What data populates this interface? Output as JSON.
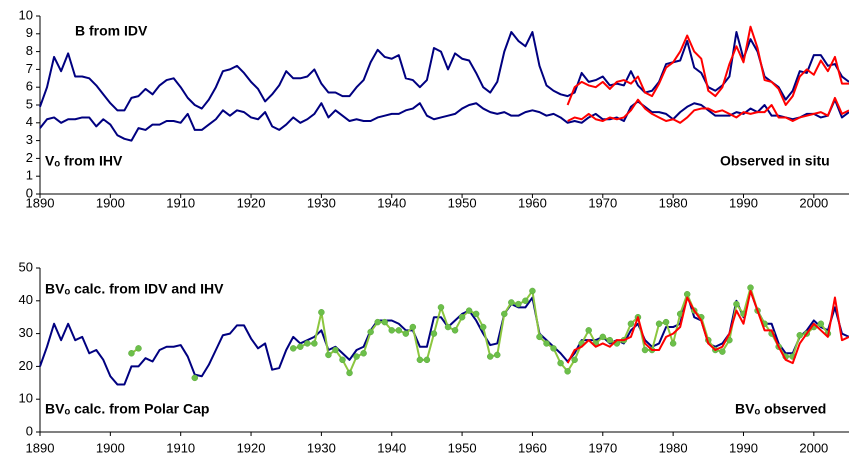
{
  "chart_data": [
    {
      "type": "line",
      "xlim": [
        1890,
        2005
      ],
      "xticks": [
        1890,
        1900,
        1910,
        1920,
        1930,
        1940,
        1950,
        1960,
        1970,
        1980,
        1990,
        2000
      ],
      "ylim": [
        0,
        10
      ],
      "yticks": [
        0,
        1,
        2,
        3,
        4,
        5,
        6,
        7,
        8,
        9,
        10
      ],
      "x": [
        1890,
        1891,
        1892,
        1893,
        1894,
        1895,
        1896,
        1897,
        1898,
        1899,
        1900,
        1901,
        1902,
        1903,
        1904,
        1905,
        1906,
        1907,
        1908,
        1909,
        1910,
        1911,
        1912,
        1913,
        1914,
        1915,
        1916,
        1917,
        1918,
        1919,
        1920,
        1921,
        1922,
        1923,
        1924,
        1925,
        1926,
        1927,
        1928,
        1929,
        1930,
        1931,
        1932,
        1933,
        1934,
        1935,
        1936,
        1937,
        1938,
        1939,
        1940,
        1941,
        1942,
        1943,
        1944,
        1945,
        1946,
        1947,
        1948,
        1949,
        1950,
        1951,
        1952,
        1953,
        1954,
        1955,
        1956,
        1957,
        1958,
        1959,
        1960,
        1961,
        1962,
        1963,
        1964,
        1965,
        1966,
        1967,
        1968,
        1969,
        1970,
        1971,
        1972,
        1973,
        1974,
        1975,
        1976,
        1977,
        1978,
        1979,
        1980,
        1981,
        1982,
        1983,
        1984,
        1985,
        1986,
        1987,
        1988,
        1989,
        1990,
        1991,
        1992,
        1993,
        1994,
        1995,
        1996,
        1997,
        1998,
        1999,
        2000,
        2001,
        2002,
        2003,
        2004,
        2005
      ],
      "series": [
        {
          "name": "B from IDV",
          "color": "#000080",
          "values": [
            4.9,
            6.0,
            7.7,
            6.9,
            7.9,
            6.6,
            6.6,
            6.5,
            6.1,
            5.6,
            5.1,
            4.7,
            4.7,
            5.4,
            5.5,
            5.9,
            5.6,
            6.1,
            6.4,
            6.5,
            6.0,
            5.4,
            5.0,
            4.8,
            5.3,
            6.0,
            6.9,
            7.0,
            7.2,
            6.8,
            6.3,
            5.9,
            5.2,
            5.6,
            6.1,
            6.9,
            6.5,
            6.5,
            6.6,
            7.0,
            6.2,
            5.7,
            5.7,
            5.5,
            5.5,
            6.0,
            6.4,
            7.4,
            8.1,
            7.7,
            7.6,
            7.8,
            6.5,
            6.4,
            6.0,
            6.4,
            8.2,
            8.0,
            7.0,
            7.9,
            7.6,
            7.5,
            6.8,
            6.0,
            5.7,
            6.3,
            8.0,
            9.1,
            8.6,
            8.3,
            9.1,
            7.2,
            6.1,
            5.8,
            5.6,
            5.5,
            5.7,
            6.8,
            6.3,
            6.4,
            6.6,
            6.1,
            6.2,
            6.1,
            6.9,
            6.1,
            5.7,
            5.8,
            6.3,
            7.3,
            7.4,
            7.5,
            8.6,
            7.1,
            6.8,
            6.0,
            5.8,
            6.1,
            6.6,
            9.1,
            7.6,
            8.7,
            8.0,
            6.6,
            6.3,
            6.0,
            5.3,
            5.8,
            6.9,
            6.8,
            7.8,
            7.8,
            7.2,
            7.3,
            6.6,
            6.3
          ]
        },
        {
          "name": "Vₒ from IHV",
          "color": "#000080",
          "values": [
            3.7,
            4.2,
            4.3,
            4.0,
            4.2,
            4.2,
            4.3,
            4.3,
            3.8,
            4.2,
            3.9,
            3.3,
            3.1,
            3.0,
            3.7,
            3.6,
            3.9,
            3.9,
            4.1,
            4.1,
            4.0,
            4.5,
            3.6,
            3.6,
            3.9,
            4.2,
            4.7,
            4.4,
            4.7,
            4.6,
            4.3,
            4.2,
            4.6,
            3.8,
            3.6,
            3.9,
            4.3,
            4.0,
            4.2,
            4.5,
            5.1,
            4.3,
            4.7,
            4.4,
            4.1,
            4.2,
            4.1,
            4.1,
            4.3,
            4.4,
            4.5,
            4.5,
            4.7,
            4.8,
            5.1,
            4.4,
            4.2,
            4.3,
            4.4,
            4.5,
            4.8,
            5.0,
            5.1,
            4.8,
            4.6,
            4.5,
            4.6,
            4.4,
            4.4,
            4.6,
            4.7,
            4.6,
            4.4,
            4.5,
            4.3,
            4.0,
            4.1,
            4.0,
            4.3,
            4.5,
            4.2,
            4.2,
            4.3,
            4.1,
            4.9,
            5.2,
            4.9,
            4.6,
            4.6,
            4.5,
            4.2,
            4.6,
            4.9,
            5.1,
            5.0,
            4.7,
            4.4,
            4.4,
            4.4,
            4.6,
            4.5,
            4.8,
            4.6,
            5.0,
            4.4,
            4.4,
            4.3,
            4.2,
            4.3,
            4.5,
            4.5,
            4.3,
            4.4,
            5.3,
            4.3,
            4.6
          ]
        },
        {
          "name": "Observed in situ",
          "color": "#ff0000",
          "values": [
            null,
            null,
            null,
            null,
            null,
            null,
            null,
            null,
            null,
            null,
            null,
            null,
            null,
            null,
            null,
            null,
            null,
            null,
            null,
            null,
            null,
            null,
            null,
            null,
            null,
            null,
            null,
            null,
            null,
            null,
            null,
            null,
            null,
            null,
            null,
            null,
            null,
            null,
            null,
            null,
            null,
            null,
            null,
            null,
            null,
            null,
            null,
            null,
            null,
            null,
            null,
            null,
            null,
            null,
            null,
            null,
            null,
            null,
            null,
            null,
            null,
            null,
            null,
            null,
            null,
            null,
            null,
            null,
            null,
            null,
            null,
            null,
            null,
            null,
            null,
            5.0,
            6.0,
            6.3,
            6.1,
            6.0,
            6.3,
            5.9,
            6.3,
            6.4,
            6.2,
            6.6,
            5.7,
            5.5,
            6.2,
            7.1,
            7.4,
            8.0,
            8.9,
            8.0,
            7.6,
            5.8,
            5.5,
            6.0,
            7.3,
            8.3,
            7.4,
            9.4,
            8.2,
            6.4,
            6.3,
            5.9,
            5.0,
            5.5,
            6.6,
            7.0,
            6.7,
            7.5,
            6.9,
            7.7,
            6.2,
            6.2
          ]
        },
        {
          "color": "#ff0000",
          "values": [
            null,
            null,
            null,
            null,
            null,
            null,
            null,
            null,
            null,
            null,
            null,
            null,
            null,
            null,
            null,
            null,
            null,
            null,
            null,
            null,
            null,
            null,
            null,
            null,
            null,
            null,
            null,
            null,
            null,
            null,
            null,
            null,
            null,
            null,
            null,
            null,
            null,
            null,
            null,
            null,
            null,
            null,
            null,
            null,
            null,
            null,
            null,
            null,
            null,
            null,
            null,
            null,
            null,
            null,
            null,
            null,
            null,
            null,
            null,
            null,
            null,
            null,
            null,
            null,
            null,
            null,
            null,
            null,
            null,
            null,
            null,
            null,
            null,
            null,
            null,
            4.1,
            4.3,
            4.2,
            4.5,
            4.2,
            4.1,
            4.3,
            4.2,
            4.3,
            4.7,
            5.3,
            4.8,
            4.5,
            4.3,
            4.1,
            4.2,
            4.0,
            4.3,
            4.7,
            4.8,
            4.8,
            4.6,
            4.7,
            4.5,
            4.3,
            4.6,
            4.5,
            4.6,
            4.6,
            5.0,
            4.3,
            4.3,
            4.1,
            4.3,
            4.4,
            4.5,
            4.6,
            4.4,
            5.4,
            4.5,
            4.7
          ]
        }
      ]
    },
    {
      "type": "line",
      "xlim": [
        1890,
        2005
      ],
      "xticks": [
        1890,
        1900,
        1910,
        1920,
        1930,
        1940,
        1950,
        1960,
        1970,
        1980,
        1990,
        2000
      ],
      "ylim": [
        0,
        50
      ],
      "yticks": [
        0,
        10,
        20,
        30,
        40,
        50
      ],
      "x": [
        1890,
        1891,
        1892,
        1893,
        1894,
        1895,
        1896,
        1897,
        1898,
        1899,
        1900,
        1901,
        1902,
        1903,
        1904,
        1905,
        1906,
        1907,
        1908,
        1909,
        1910,
        1911,
        1912,
        1913,
        1914,
        1915,
        1916,
        1917,
        1918,
        1919,
        1920,
        1921,
        1922,
        1923,
        1924,
        1925,
        1926,
        1927,
        1928,
        1929,
        1930,
        1931,
        1932,
        1933,
        1934,
        1935,
        1936,
        1937,
        1938,
        1939,
        1940,
        1941,
        1942,
        1943,
        1944,
        1945,
        1946,
        1947,
        1948,
        1949,
        1950,
        1951,
        1952,
        1953,
        1954,
        1955,
        1956,
        1957,
        1958,
        1959,
        1960,
        1961,
        1962,
        1963,
        1964,
        1965,
        1966,
        1967,
        1968,
        1969,
        1970,
        1971,
        1972,
        1973,
        1974,
        1975,
        1976,
        1977,
        1978,
        1979,
        1980,
        1981,
        1982,
        1983,
        1984,
        1985,
        1986,
        1987,
        1988,
        1989,
        1990,
        1991,
        1992,
        1993,
        1994,
        1995,
        1996,
        1997,
        1998,
        1999,
        2000,
        2001,
        2002,
        2003,
        2004,
        2005
      ],
      "series": [
        {
          "name": "BVₒ calc. from IDV and IHV",
          "color": "#000080",
          "values": [
            20,
            26,
            33,
            28,
            33,
            28,
            29,
            24,
            25,
            22,
            17,
            14.5,
            14.5,
            20,
            20,
            22.5,
            21.5,
            25,
            26,
            26,
            26.5,
            23,
            17.5,
            17,
            20.5,
            25,
            29.5,
            30,
            32.5,
            32.5,
            28.5,
            25.5,
            27,
            19,
            19.5,
            25,
            29,
            27,
            28,
            29,
            31,
            25,
            26,
            24,
            22,
            25,
            26,
            31,
            34,
            34,
            34,
            33,
            31,
            31,
            26,
            26,
            35,
            35,
            32,
            34,
            36,
            37,
            34,
            30,
            26.5,
            27,
            36,
            39,
            38,
            38,
            41,
            30,
            28,
            26,
            24,
            21.5,
            24,
            28,
            28,
            28,
            29,
            27,
            28,
            27,
            31,
            33,
            28,
            26,
            27,
            32,
            32,
            33,
            42,
            35,
            34,
            27,
            26,
            27,
            30,
            40,
            35,
            43,
            37,
            33,
            33,
            27,
            24,
            24,
            29,
            31,
            34,
            32,
            31,
            38,
            30,
            29
          ]
        },
        {
          "name": "BVₒ calc. from Polar Cap",
          "color": "#8cc63f",
          "markers": true,
          "values": [
            null,
            null,
            null,
            null,
            null,
            null,
            null,
            null,
            null,
            null,
            null,
            null,
            null,
            24,
            25.5,
            null,
            null,
            null,
            null,
            null,
            null,
            null,
            16.5,
            null,
            null,
            null,
            null,
            null,
            null,
            null,
            null,
            null,
            null,
            null,
            null,
            null,
            25.5,
            26,
            27,
            27,
            36.5,
            23.5,
            25,
            22,
            18,
            23,
            24,
            30.5,
            33.5,
            33.5,
            31,
            31,
            30,
            32,
            22,
            22,
            30,
            38,
            32,
            31,
            35,
            37,
            36,
            32,
            23,
            23.5,
            36,
            39.5,
            39,
            40,
            43,
            29,
            27,
            25.5,
            21,
            18.5,
            22,
            27,
            31,
            27,
            29,
            28,
            27,
            28,
            33,
            35,
            25,
            25,
            33,
            33.5,
            27,
            36,
            42,
            37,
            35,
            28,
            25,
            24.5,
            28,
            39,
            36,
            44,
            37,
            33,
            30,
            26,
            23,
            23,
            29.5,
            30,
            32,
            33,
            30,
            null,
            null,
            null
          ]
        },
        {
          "name": "BVₒ observed",
          "color": "#ff0000",
          "values": [
            null,
            null,
            null,
            null,
            null,
            null,
            null,
            null,
            null,
            null,
            null,
            null,
            null,
            null,
            null,
            null,
            null,
            null,
            null,
            null,
            null,
            null,
            null,
            null,
            null,
            null,
            null,
            null,
            null,
            null,
            null,
            null,
            null,
            null,
            null,
            null,
            null,
            null,
            null,
            null,
            null,
            null,
            null,
            null,
            null,
            null,
            null,
            null,
            null,
            null,
            null,
            null,
            null,
            null,
            null,
            null,
            null,
            null,
            null,
            null,
            null,
            null,
            null,
            null,
            null,
            null,
            null,
            null,
            null,
            null,
            null,
            null,
            null,
            null,
            null,
            21,
            25,
            26,
            28,
            26,
            27,
            26,
            28,
            28,
            29,
            35,
            27,
            25,
            25,
            29,
            30,
            32,
            41,
            37,
            34,
            27,
            25,
            26,
            30,
            37,
            33,
            43,
            37,
            31,
            31,
            26,
            22,
            21,
            27,
            30,
            33,
            31,
            29,
            41,
            28,
            29
          ]
        }
      ]
    }
  ]
}
